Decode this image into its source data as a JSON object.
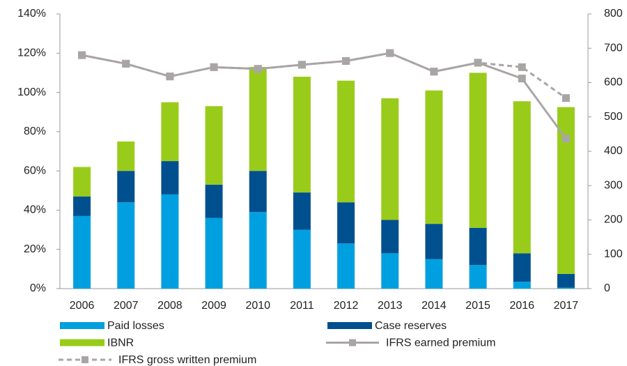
{
  "chart_data": {
    "type": "bar",
    "stacked": true,
    "categories": [
      "2006",
      "2007",
      "2008",
      "2009",
      "2010",
      "2011",
      "2012",
      "2013",
      "2014",
      "2015",
      "2016",
      "2017"
    ],
    "series": [
      {
        "name": "Paid losses",
        "type": "bar",
        "color": "#00a0e0",
        "values": [
          37,
          44,
          48,
          36,
          39,
          30,
          23,
          18,
          15,
          12,
          3.5,
          0.5
        ]
      },
      {
        "name": "Case reserves",
        "type": "bar",
        "color": "#00508f",
        "values": [
          10,
          16,
          17,
          17,
          21,
          19,
          21,
          17,
          18,
          19,
          14.5,
          7
        ]
      },
      {
        "name": "IBNR",
        "type": "bar",
        "color": "#99cc1a",
        "values": [
          15,
          15,
          30,
          40,
          53,
          59,
          62,
          62,
          68,
          79,
          77.5,
          85
        ]
      },
      {
        "name": "IFRS earned premium",
        "type": "line",
        "axis": "y2",
        "color": "#aaa5a5",
        "dashed": false,
        "marker": "square",
        "values": [
          680,
          655,
          618,
          645,
          640,
          652,
          663,
          686,
          632,
          658,
          612,
          437
        ]
      },
      {
        "name": "IFRS gross written premium",
        "type": "line",
        "axis": "y2",
        "color": "#aaa5a5",
        "dashed": true,
        "marker": "square",
        "values": [
          680,
          655,
          618,
          645,
          640,
          652,
          663,
          686,
          632,
          658,
          645,
          555
        ]
      }
    ],
    "ylim": [
      0,
      140
    ],
    "yticks": [
      {
        "value": 0,
        "label": "0%"
      },
      {
        "value": 20,
        "label": "20%"
      },
      {
        "value": 40,
        "label": "40%"
      },
      {
        "value": 60,
        "label": "60%"
      },
      {
        "value": 80,
        "label": "80%"
      },
      {
        "value": 100,
        "label": "100%"
      },
      {
        "value": 120,
        "label": "120%"
      },
      {
        "value": 140,
        "label": "140%"
      }
    ],
    "y2lim": [
      0,
      800
    ],
    "y2ticks": [
      0,
      100,
      200,
      300,
      400,
      500,
      600,
      700,
      800
    ],
    "grid": false,
    "legend": "bottom"
  }
}
